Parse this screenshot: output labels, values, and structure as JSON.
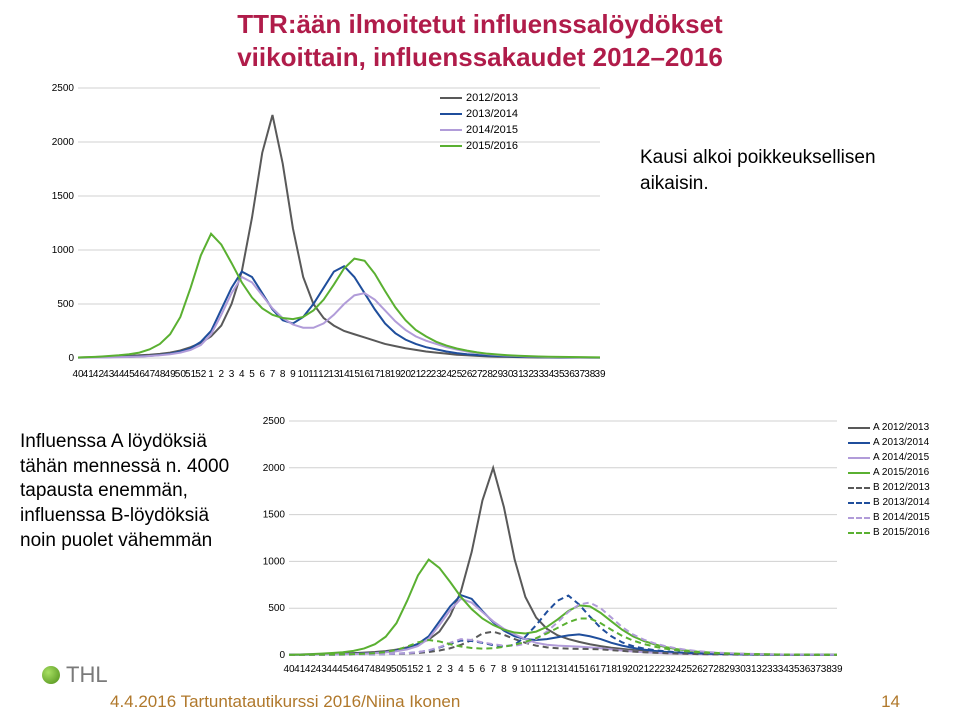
{
  "title_line1": "TTR:ään ilmoitetut influenssalöydökset",
  "title_line2": "viikoittain, influenssakaudet 2012–2016",
  "note1": "Kausi alkoi poikkeuksellisen aikaisin.",
  "note2": "Influenssa A löydöksiä tähän mennessä n. 4000 tapausta enemmän, influenssa B-löydöksiä noin puolet vähemmän",
  "thl_label": "THL",
  "footer_text": "4.4.2016  Tartuntatautikurssi 2016/Niina Ikonen",
  "footer_num": "14",
  "chart1": {
    "ylim": [
      0,
      2500
    ],
    "ytick_step": 500,
    "background_color": "#ffffff",
    "grid_color": "#d0d0d0",
    "x_labels": [
      "40",
      "41",
      "42",
      "43",
      "44",
      "45",
      "46",
      "47",
      "48",
      "49",
      "50",
      "51",
      "52",
      "1",
      "2",
      "3",
      "4",
      "5",
      "6",
      "7",
      "8",
      "9",
      "10",
      "11",
      "12",
      "13",
      "14",
      "15",
      "16",
      "17",
      "18",
      "19",
      "20",
      "21",
      "22",
      "23",
      "24",
      "25",
      "26",
      "27",
      "28",
      "29",
      "30",
      "31",
      "32",
      "33",
      "34",
      "35",
      "36",
      "37",
      "38",
      "39"
    ],
    "legend": [
      {
        "label": "2012/2013",
        "color": "#595959"
      },
      {
        "label": "2013/2014",
        "color": "#1f4e9c"
      },
      {
        "label": "2014/2015",
        "color": "#b19cd9"
      },
      {
        "label": "2015/2016",
        "color": "#5ab031"
      }
    ],
    "series": [
      {
        "name": "2012/2013",
        "color": "#595959",
        "values": [
          5,
          7,
          10,
          12,
          15,
          20,
          25,
          30,
          38,
          50,
          70,
          100,
          140,
          200,
          300,
          500,
          800,
          1300,
          1900,
          2250,
          1800,
          1200,
          750,
          500,
          370,
          300,
          250,
          220,
          190,
          160,
          130,
          110,
          90,
          75,
          60,
          50,
          40,
          30,
          25,
          20,
          15,
          12,
          10,
          8,
          6,
          5,
          5,
          4,
          4,
          3,
          3,
          3
        ]
      },
      {
        "name": "2013/2014",
        "color": "#1f4e9c",
        "values": [
          4,
          5,
          6,
          8,
          10,
          12,
          15,
          20,
          28,
          40,
          60,
          90,
          150,
          250,
          450,
          650,
          800,
          750,
          600,
          450,
          350,
          320,
          380,
          500,
          650,
          800,
          850,
          750,
          600,
          450,
          320,
          230,
          170,
          130,
          100,
          80,
          60,
          45,
          35,
          28,
          22,
          18,
          15,
          12,
          10,
          8,
          7,
          6,
          5,
          5,
          4,
          4
        ]
      },
      {
        "name": "2014/2015",
        "color": "#b19cd9",
        "values": [
          3,
          4,
          5,
          6,
          8,
          10,
          13,
          18,
          25,
          35,
          50,
          75,
          120,
          220,
          400,
          600,
          750,
          700,
          580,
          460,
          370,
          310,
          280,
          280,
          320,
          400,
          500,
          580,
          600,
          540,
          440,
          340,
          260,
          200,
          160,
          130,
          100,
          78,
          60,
          46,
          36,
          28,
          22,
          18,
          14,
          11,
          9,
          8,
          7,
          6,
          5,
          5
        ]
      },
      {
        "name": "2015/2016",
        "color": "#5ab031",
        "values": [
          5,
          8,
          12,
          18,
          25,
          35,
          50,
          80,
          130,
          220,
          380,
          650,
          950,
          1150,
          1050,
          880,
          700,
          560,
          460,
          400,
          370,
          360,
          380,
          440,
          540,
          680,
          830,
          920,
          900,
          780,
          620,
          470,
          350,
          260,
          200,
          150,
          115,
          88,
          68,
          52,
          40,
          32,
          26,
          21,
          17,
          14,
          12,
          10,
          9,
          8,
          7,
          6
        ]
      }
    ]
  },
  "chart2": {
    "ylim": [
      0,
      2500
    ],
    "ytick_step": 500,
    "background_color": "#ffffff",
    "grid_color": "#d0d0d0",
    "x_labels": [
      "40",
      "41",
      "42",
      "43",
      "44",
      "45",
      "46",
      "47",
      "48",
      "49",
      "50",
      "51",
      "52",
      "1",
      "2",
      "3",
      "4",
      "5",
      "6",
      "7",
      "8",
      "9",
      "10",
      "11",
      "12",
      "13",
      "14",
      "15",
      "16",
      "17",
      "18",
      "19",
      "20",
      "21",
      "22",
      "23",
      "24",
      "25",
      "26",
      "27",
      "28",
      "29",
      "30",
      "31",
      "32",
      "33",
      "34",
      "35",
      "36",
      "37",
      "38",
      "39"
    ],
    "legend": [
      {
        "label": "A 2012/2013",
        "color": "#595959",
        "dash": false
      },
      {
        "label": "A 2013/2014",
        "color": "#1f4e9c",
        "dash": false
      },
      {
        "label": "A 2014/2015",
        "color": "#b19cd9",
        "dash": false
      },
      {
        "label": "A 2015/2016",
        "color": "#5ab031",
        "dash": false
      },
      {
        "label": "B 2012/2013",
        "color": "#595959",
        "dash": true
      },
      {
        "label": "B 2013/2014",
        "color": "#1f4e9c",
        "dash": true
      },
      {
        "label": "B 2014/2015",
        "color": "#b19cd9",
        "dash": true
      },
      {
        "label": "B 2015/2016",
        "color": "#5ab031",
        "dash": true
      }
    ],
    "series": [
      {
        "name": "A 2012/2013",
        "color": "#595959",
        "dash": false,
        "values": [
          3,
          5,
          7,
          9,
          12,
          15,
          20,
          25,
          32,
          42,
          58,
          82,
          115,
          165,
          250,
          420,
          680,
          1100,
          1650,
          2000,
          1580,
          1020,
          620,
          400,
          280,
          210,
          170,
          140,
          115,
          95,
          78,
          65,
          54,
          44,
          36,
          30,
          24,
          19,
          15,
          12,
          10,
          8,
          6,
          5,
          4,
          4,
          3,
          3,
          3,
          2,
          2,
          2
        ]
      },
      {
        "name": "A 2013/2014",
        "color": "#1f4e9c",
        "dash": false,
        "values": [
          2,
          3,
          4,
          5,
          7,
          9,
          12,
          16,
          22,
          32,
          48,
          72,
          120,
          200,
          360,
          520,
          640,
          600,
          470,
          350,
          260,
          200,
          170,
          160,
          170,
          190,
          210,
          220,
          200,
          170,
          130,
          100,
          76,
          58,
          44,
          34,
          26,
          20,
          15,
          12,
          9,
          7,
          6,
          5,
          4,
          3,
          3,
          3,
          2,
          2,
          2,
          2
        ]
      },
      {
        "name": "A 2014/2015",
        "color": "#b19cd9",
        "dash": false,
        "values": [
          2,
          3,
          4,
          5,
          6,
          8,
          10,
          14,
          20,
          28,
          40,
          60,
          95,
          175,
          320,
          480,
          600,
          560,
          460,
          360,
          280,
          220,
          170,
          130,
          110,
          100,
          95,
          90,
          82,
          72,
          60,
          48,
          38,
          30,
          24,
          19,
          15,
          12,
          9,
          7,
          6,
          5,
          4,
          3,
          3,
          2,
          2,
          2,
          2,
          2,
          2,
          2
        ]
      },
      {
        "name": "A 2015/2016",
        "color": "#5ab031",
        "dash": false,
        "values": [
          4,
          6,
          10,
          15,
          22,
          30,
          44,
          70,
          115,
          195,
          340,
          580,
          850,
          1020,
          930,
          780,
          620,
          490,
          390,
          320,
          270,
          240,
          230,
          250,
          300,
          380,
          470,
          530,
          520,
          450,
          360,
          270,
          200,
          150,
          115,
          85,
          64,
          48,
          36,
          28,
          22,
          17,
          14,
          11,
          9,
          7,
          6,
          5,
          5,
          4,
          4,
          3
        ]
      },
      {
        "name": "B 2012/2013",
        "color": "#595959",
        "dash": true,
        "values": [
          2,
          2,
          3,
          3,
          4,
          5,
          6,
          7,
          8,
          10,
          12,
          16,
          22,
          32,
          48,
          72,
          108,
          160,
          230,
          250,
          215,
          170,
          130,
          100,
          82,
          72,
          68,
          66,
          64,
          60,
          52,
          44,
          36,
          30,
          24,
          20,
          16,
          13,
          10,
          8,
          6,
          5,
          4,
          4,
          3,
          3,
          2,
          2,
          2,
          2,
          2,
          2
        ]
      },
      {
        "name": "B 2013/2014",
        "color": "#1f4e9c",
        "dash": true,
        "values": [
          2,
          2,
          2,
          3,
          3,
          4,
          5,
          6,
          8,
          10,
          14,
          20,
          30,
          48,
          80,
          120,
          155,
          150,
          130,
          105,
          90,
          110,
          195,
          320,
          460,
          580,
          635,
          540,
          410,
          290,
          200,
          135,
          95,
          70,
          52,
          40,
          30,
          23,
          18,
          14,
          11,
          9,
          7,
          6,
          5,
          4,
          4,
          3,
          3,
          3,
          2,
          2
        ]
      },
      {
        "name": "B 2014/2015",
        "color": "#b19cd9",
        "dash": true,
        "values": [
          1,
          2,
          2,
          2,
          3,
          4,
          5,
          6,
          8,
          10,
          14,
          20,
          30,
          50,
          84,
          130,
          170,
          160,
          135,
          115,
          100,
          98,
          120,
          170,
          250,
          350,
          460,
          540,
          560,
          500,
          400,
          300,
          220,
          165,
          125,
          95,
          72,
          55,
          42,
          32,
          24,
          19,
          15,
          12,
          9,
          7,
          6,
          5,
          4,
          4,
          3,
          3
        ]
      },
      {
        "name": "B 2015/2016",
        "color": "#5ab031",
        "dash": true,
        "values": [
          1,
          2,
          3,
          4,
          5,
          7,
          9,
          13,
          20,
          32,
          54,
          90,
          135,
          160,
          145,
          115,
          90,
          75,
          68,
          72,
          88,
          110,
          140,
          180,
          230,
          290,
          350,
          390,
          390,
          340,
          270,
          205,
          155,
          118,
          90,
          68,
          52,
          40,
          30,
          23,
          18,
          14,
          11,
          9,
          7,
          6,
          5,
          4,
          4,
          3,
          3,
          3
        ]
      }
    ]
  }
}
